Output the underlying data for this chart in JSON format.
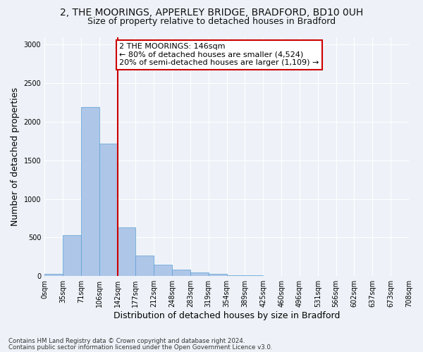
{
  "title_line1": "2, THE MOORINGS, APPERLEY BRIDGE, BRADFORD, BD10 0UH",
  "title_line2": "Size of property relative to detached houses in Bradford",
  "xlabel": "Distribution of detached houses by size in Bradford",
  "ylabel": "Number of detached properties",
  "bar_values": [
    25,
    527,
    2190,
    1720,
    635,
    270,
    145,
    80,
    45,
    28,
    15,
    8,
    5,
    3,
    2,
    1,
    1,
    0,
    0,
    0
  ],
  "bin_labels": [
    "0sqm",
    "35sqm",
    "71sqm",
    "106sqm",
    "142sqm",
    "177sqm",
    "212sqm",
    "248sqm",
    "283sqm",
    "319sqm",
    "354sqm",
    "389sqm",
    "425sqm",
    "460sqm",
    "496sqm",
    "531sqm",
    "566sqm",
    "602sqm",
    "637sqm",
    "673sqm",
    "708sqm"
  ],
  "bar_color": "#aec6e8",
  "bar_edge_color": "#5a9fd4",
  "vline_x_bin": 4,
  "annotation_text": "2 THE MOORINGS: 146sqm\n← 80% of detached houses are smaller (4,524)\n20% of semi-detached houses are larger (1,109) →",
  "annotation_box_color": "#ffffff",
  "annotation_box_edge": "#cc0000",
  "vline_color": "#cc0000",
  "ylim": [
    0,
    3100
  ],
  "yticks": [
    0,
    500,
    1000,
    1500,
    2000,
    2500,
    3000
  ],
  "footer_line1": "Contains HM Land Registry data © Crown copyright and database right 2024.",
  "footer_line2": "Contains public sector information licensed under the Open Government Licence v3.0.",
  "background_color": "#eef2f8",
  "grid_color": "#ffffff",
  "title_fontsize": 10,
  "subtitle_fontsize": 9,
  "label_fontsize": 9,
  "tick_fontsize": 7
}
